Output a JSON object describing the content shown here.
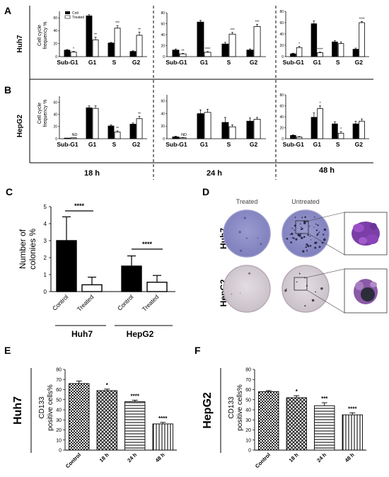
{
  "panels": {
    "A": "A",
    "B": "B",
    "C": "C",
    "D": "D",
    "E": "E",
    "F": "F"
  },
  "rows": {
    "huh7": "Huh7",
    "hepg2": "HepG2"
  },
  "timepoints": [
    "18 h",
    "24 h",
    "48 h"
  ],
  "cellcycle_ylabel_1": "Cell cycle",
  "cellcycle_ylabel_2": "frequency %",
  "legend": {
    "ctrl": "Cntl",
    "treated": "Treated"
  },
  "colors": {
    "black": "#000000",
    "white": "#ffffff",
    "bg": "#ffffff",
    "dish": "#8e8fc6",
    "dish_light": "#d7d1d6",
    "colony": "#7b3ea8"
  },
  "D_labels": {
    "treated": "Treated",
    "untreated": "Untreated",
    "huh7": "Huh7",
    "hepg2": "HepG2"
  },
  "chart_data": [
    {
      "id": "A-18h",
      "type": "bar",
      "row": "Huh7",
      "timepoint": "18 h",
      "categories": [
        "Sub-G1",
        "G1",
        "S",
        "G2"
      ],
      "ylim": [
        0,
        70
      ],
      "yticks": [
        0,
        20,
        40,
        60
      ],
      "series": [
        {
          "name": "Cntl",
          "values": [
            10,
            63,
            21,
            8
          ],
          "errors": [
            1,
            2,
            1,
            1
          ]
        },
        {
          "name": "Treated",
          "values": [
            7,
            26,
            44,
            33
          ],
          "errors": [
            1,
            4,
            4,
            5
          ]
        }
      ],
      "annotations": [
        "*",
        "**",
        "***",
        "**"
      ]
    },
    {
      "id": "A-24h",
      "type": "bar",
      "row": "Huh7",
      "timepoint": "24 h",
      "categories": [
        "Sub-G1",
        "G1",
        "S",
        "G2"
      ],
      "ylim": [
        0,
        80
      ],
      "yticks": [
        0,
        20,
        40,
        60,
        80
      ],
      "series": [
        {
          "name": "Cntl",
          "values": [
            12,
            63,
            23,
            12
          ],
          "errors": [
            2,
            3,
            3,
            2
          ]
        },
        {
          "name": "Treated",
          "values": [
            5,
            8,
            41,
            55
          ],
          "errors": [
            1,
            1,
            3,
            4
          ]
        }
      ],
      "annotations": [
        "**",
        "****",
        "***",
        "***"
      ]
    },
    {
      "id": "A-48h",
      "type": "bar",
      "row": "Huh7",
      "timepoint": "48 h",
      "categories": [
        "Sub-G1",
        "G1",
        "S",
        "G2"
      ],
      "ylim": [
        0,
        80
      ],
      "yticks": [
        0,
        20,
        40,
        60,
        80
      ],
      "series": [
        {
          "name": "Cntl",
          "values": [
            5,
            58,
            26,
            13
          ],
          "errors": [
            1,
            5,
            2,
            2
          ]
        },
        {
          "name": "Treated",
          "values": [
            16,
            7,
            23,
            60
          ],
          "errors": [
            2,
            1,
            3,
            2
          ]
        }
      ],
      "annotations": [
        "*",
        "****",
        "",
        "****"
      ]
    },
    {
      "id": "B-18h",
      "type": "bar",
      "row": "HepG2",
      "timepoint": "18 h",
      "categories": [
        "Sub-G1",
        "G1",
        "S",
        "G2"
      ],
      "ylim": [
        0,
        70
      ],
      "yticks": [
        0,
        20,
        40,
        60
      ],
      "series": [
        {
          "name": "Cntl",
          "values": [
            1,
            51,
            21,
            24
          ],
          "errors": [
            0,
            3,
            2,
            2
          ]
        },
        {
          "name": "Treated",
          "values": [
            1.5,
            50,
            11,
            33
          ],
          "errors": [
            0,
            4,
            2,
            4
          ]
        }
      ],
      "annotations": [
        "ND",
        "",
        "**",
        "**"
      ]
    },
    {
      "id": "B-24h",
      "type": "bar",
      "row": "HepG2",
      "timepoint": "24 h",
      "categories": [
        "Sub-G1",
        "G1",
        "S",
        "G2"
      ],
      "ylim": [
        0,
        70
      ],
      "yticks": [
        0,
        20,
        40,
        60
      ],
      "series": [
        {
          "name": "Cntl",
          "values": [
            3,
            40,
            26,
            28
          ],
          "errors": [
            1,
            6,
            8,
            5
          ]
        },
        {
          "name": "Treated",
          "values": [
            1.5,
            42,
            19,
            31
          ],
          "errors": [
            0.5,
            5,
            3,
            3
          ]
        }
      ],
      "annotations": [
        "ND",
        "",
        "",
        ""
      ]
    },
    {
      "id": "B-48h",
      "type": "bar",
      "row": "HepG2",
      "timepoint": "48 h",
      "categories": [
        "Sub-G1",
        "G1",
        "S",
        "G2"
      ],
      "ylim": [
        0,
        80
      ],
      "yticks": [
        0,
        20,
        40,
        60,
        80
      ],
      "series": [
        {
          "name": "Cntl",
          "values": [
            6,
            39,
            27,
            27
          ],
          "errors": [
            1,
            8,
            4,
            5
          ]
        },
        {
          "name": "Treated",
          "values": [
            3,
            55,
            10,
            32
          ],
          "errors": [
            1,
            5,
            3,
            4
          ]
        }
      ],
      "annotations": [
        "",
        "*",
        "*",
        ""
      ]
    },
    {
      "id": "C",
      "type": "bar",
      "categories": [
        "Control",
        "Treated",
        "Control",
        "Treated"
      ],
      "groups": [
        "Huh7",
        "HepG2"
      ],
      "ylabel": "Number of colonies %",
      "ylim": [
        0,
        5
      ],
      "yticks": [
        0,
        1,
        2,
        3,
        4,
        5
      ],
      "values": [
        3.0,
        0.4,
        1.5,
        0.55
      ],
      "errors": [
        1.4,
        0.45,
        0.6,
        0.4
      ],
      "fills": [
        "black",
        "white",
        "black",
        "white"
      ],
      "annotations": [
        "****",
        "****"
      ]
    },
    {
      "id": "E",
      "type": "bar",
      "row": "Huh7",
      "categories": [
        "Control",
        "18 h",
        "24 h",
        "48 h"
      ],
      "ylabel": "CD133 positive cells%",
      "ylim": [
        0,
        80
      ],
      "yticks": [
        0,
        10,
        20,
        30,
        40,
        50,
        60,
        70,
        80
      ],
      "values": [
        66,
        59,
        48,
        26
      ],
      "errors": [
        2.5,
        1.5,
        1.5,
        1.5
      ],
      "patterns": [
        "checker",
        "diagonal",
        "horizontal",
        "vertical"
      ],
      "annotations": [
        "",
        "*",
        "****",
        "****"
      ]
    },
    {
      "id": "F",
      "type": "bar",
      "row": "HepG2",
      "categories": [
        "Control",
        "18 h",
        "24 h",
        "48 h"
      ],
      "ylabel": "CD133 positive cells%",
      "ylim": [
        0,
        80
      ],
      "yticks": [
        0,
        10,
        20,
        30,
        40,
        50,
        60,
        70,
        80
      ],
      "values": [
        58,
        52,
        44,
        35
      ],
      "errors": [
        1,
        2,
        3,
        2
      ],
      "patterns": [
        "checker",
        "diagonal",
        "horizontal",
        "vertical"
      ],
      "annotations": [
        "",
        "*",
        "***",
        "****"
      ]
    }
  ]
}
